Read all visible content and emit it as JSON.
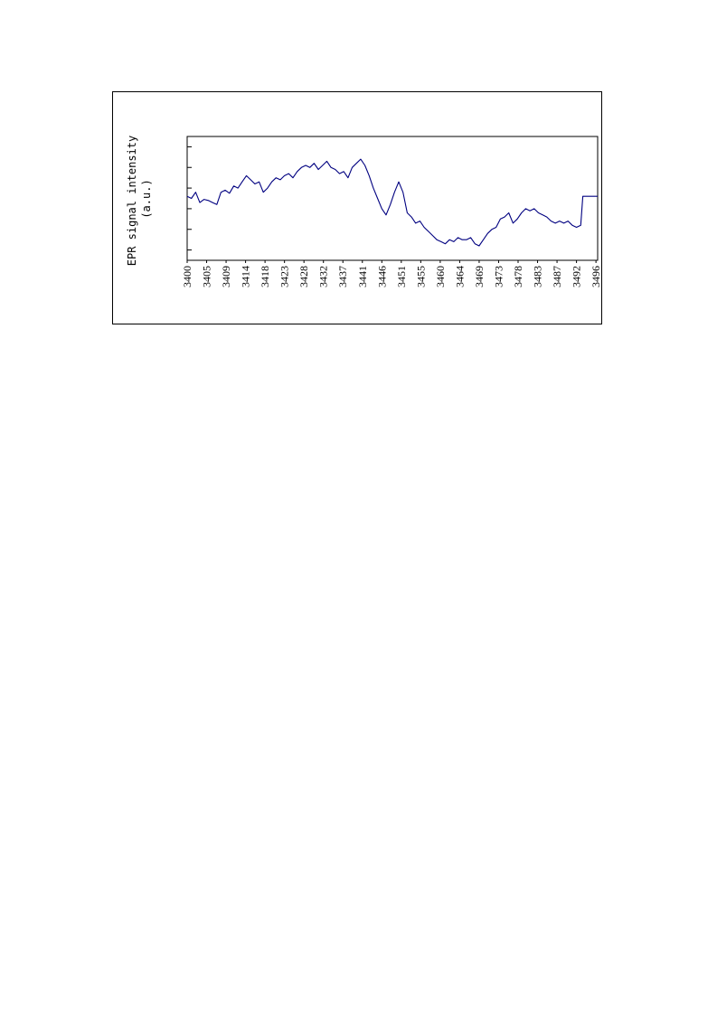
{
  "chart_data": {
    "type": "line",
    "title": "",
    "ylabel": "EPR signal intensity",
    "ylabel_unit": "(a.u.)",
    "xlabel": "",
    "xlim": [
      3400,
      3497
    ],
    "ylim": [
      -2.5,
      3.5
    ],
    "y_ticks_labeled": false,
    "x_tick_labels": [
      "3400",
      "3405",
      "3409",
      "3414",
      "3418",
      "3423",
      "3428",
      "3432",
      "3437",
      "3441",
      "3446",
      "3451",
      "3455",
      "3460",
      "3464",
      "3469",
      "3473",
      "3478",
      "3483",
      "3487",
      "3492",
      "3496"
    ],
    "x_tick_values": [
      3400,
      3404.6,
      3409.2,
      3413.8,
      3418.4,
      3423,
      3427.6,
      3432.2,
      3436.8,
      3441.4,
      3446,
      3450.6,
      3455.2,
      3459.8,
      3464.4,
      3469,
      3473.6,
      3478.2,
      3482.8,
      3487.4,
      3492,
      3496.6
    ],
    "grid": false,
    "legend": "none",
    "line_color": "#000080",
    "series": [
      {
        "x": [
          3400,
          3401,
          3402,
          3403,
          3404,
          3405,
          3406,
          3407,
          3408,
          3409,
          3410,
          3411,
          3412,
          3413,
          3414,
          3415,
          3416,
          3417,
          3418,
          3419,
          3420,
          3421,
          3422,
          3423,
          3424,
          3425,
          3426,
          3427,
          3428,
          3429,
          3430,
          3431,
          3432,
          3433,
          3434,
          3435,
          3436,
          3437,
          3438,
          3439,
          3440,
          3441,
          3442,
          3443,
          3444,
          3445,
          3446,
          3447,
          3448,
          3449,
          3450,
          3451,
          3452,
          3453,
          3454,
          3455,
          3456,
          3457,
          3458,
          3459,
          3460,
          3461,
          3462,
          3463,
          3464,
          3465,
          3466,
          3467,
          3468,
          3469,
          3470,
          3471,
          3472,
          3473,
          3474,
          3475,
          3476,
          3477,
          3478,
          3479,
          3480,
          3481,
          3482,
          3483,
          3484,
          3485,
          3486,
          3487,
          3488,
          3489,
          3490,
          3491,
          3492,
          3493,
          3493.5,
          3494,
          3495,
          3496,
          3497
        ],
        "y": [
          0.6,
          0.5,
          0.8,
          0.3,
          0.45,
          0.4,
          0.3,
          0.2,
          0.8,
          0.9,
          0.75,
          1.1,
          1.0,
          1.3,
          1.6,
          1.4,
          1.2,
          1.3,
          0.8,
          1.0,
          1.3,
          1.5,
          1.4,
          1.6,
          1.7,
          1.5,
          1.8,
          2.0,
          2.1,
          2.0,
          2.2,
          1.9,
          2.1,
          2.3,
          2.0,
          1.9,
          1.7,
          1.8,
          1.5,
          2.0,
          2.2,
          2.4,
          2.1,
          1.6,
          1.0,
          0.5,
          0.0,
          -0.3,
          0.2,
          0.8,
          1.3,
          0.8,
          -0.2,
          -0.4,
          -0.7,
          -0.6,
          -0.9,
          -1.1,
          -1.3,
          -1.5,
          -1.6,
          -1.7,
          -1.5,
          -1.6,
          -1.4,
          -1.5,
          -1.5,
          -1.4,
          -1.7,
          -1.8,
          -1.5,
          -1.2,
          -1.0,
          -0.9,
          -0.5,
          -0.4,
          -0.2,
          -0.7,
          -0.5,
          -0.2,
          0.0,
          -0.1,
          0.0,
          -0.2,
          -0.3,
          -0.4,
          -0.6,
          -0.7,
          -0.6,
          -0.7,
          -0.6,
          -0.8,
          -0.9,
          -0.8,
          0.6,
          0.6,
          0.6,
          0.6,
          0.6
        ]
      }
    ]
  }
}
